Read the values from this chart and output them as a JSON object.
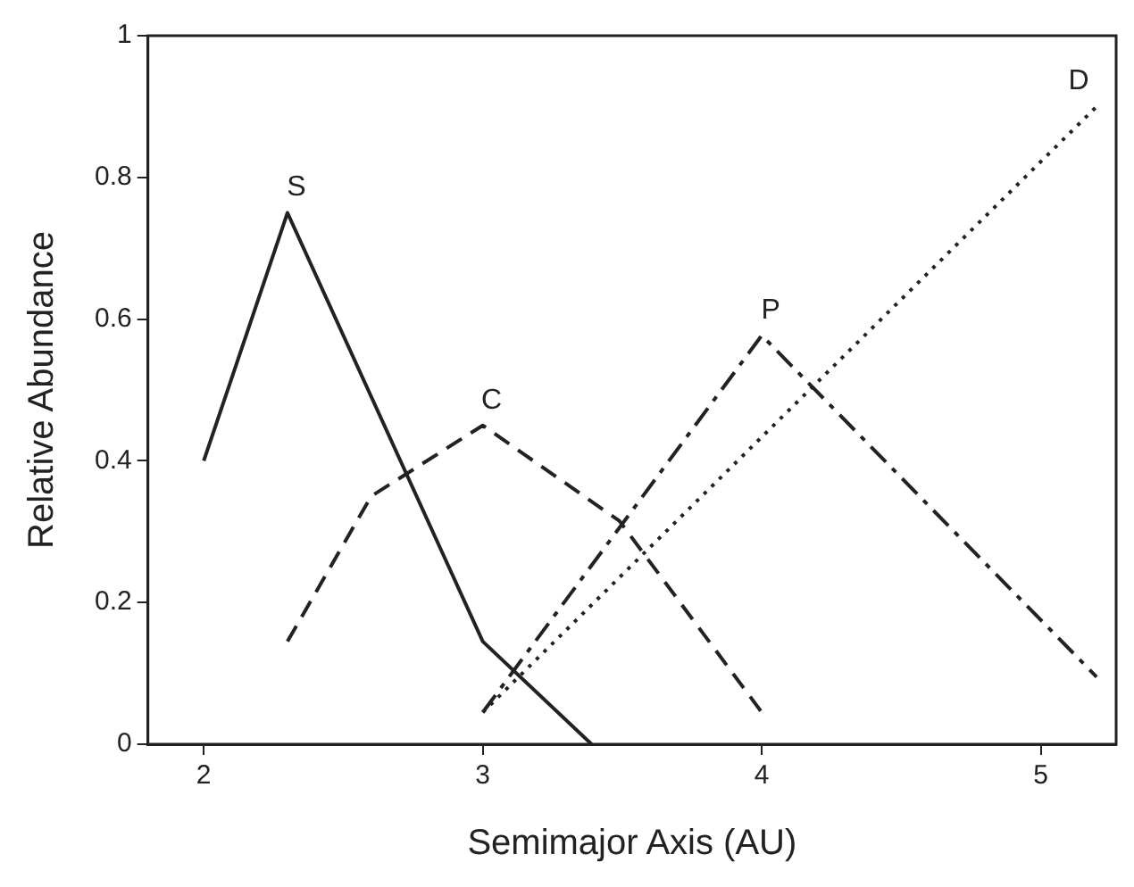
{
  "chart_data": {
    "type": "line",
    "xlabel": "Semimajor Axis (AU)",
    "ylabel": "Relative Abundance",
    "xlim": [
      1.8,
      5.27
    ],
    "xticks": [
      2,
      3,
      4,
      5
    ],
    "ylim": [
      0,
      1
    ],
    "yticks": [
      0,
      0.2,
      0.4,
      0.6,
      0.8,
      1
    ],
    "grid": false,
    "legend": false,
    "marker": "none",
    "series": [
      {
        "name": "S",
        "color": "#222222",
        "line_style": "solid",
        "x": [
          2,
          2.3,
          3,
          3.39
        ],
        "values": [
          0.4,
          0.75,
          0.145,
          0
        ]
      },
      {
        "name": "C",
        "color": "#222222",
        "line_style": "dashed",
        "x": [
          2.3,
          2.6,
          3,
          3.49,
          4
        ],
        "values": [
          0.145,
          0.35,
          0.45,
          0.315,
          0.045
        ]
      },
      {
        "name": "P",
        "color": "#222222",
        "line_style": "dashdot",
        "x": [
          3,
          4,
          5.2
        ],
        "values": [
          0.045,
          0.577,
          0.095
        ]
      },
      {
        "name": "D",
        "color": "#222222",
        "line_style": "dotted",
        "x": [
          3,
          5.2
        ],
        "values": [
          0.045,
          0.9
        ]
      }
    ]
  }
}
